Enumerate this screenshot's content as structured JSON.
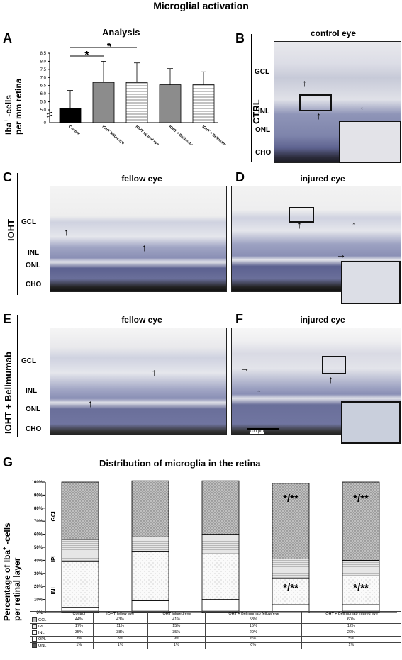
{
  "figure_title": "Microglial activation",
  "panels": {
    "A": {
      "letter": "A",
      "title": "Analysis",
      "ylabel_main": "Iba",
      "ylabel_sup": "+",
      "ylabel_rest": " -cells",
      "ylabel_line2": "per mm retina",
      "sig1": "*",
      "sig2": "*"
    },
    "B": {
      "letter": "B",
      "title": "control eye",
      "row_label": "CTRL",
      "layers": [
        "GCL",
        "INL",
        "ONL",
        "CHO"
      ]
    },
    "C": {
      "letter": "C",
      "title": "fellow eye",
      "row_label": "IOHT",
      "layers": [
        "GCL",
        "INL",
        "ONL",
        "CHO"
      ]
    },
    "D": {
      "letter": "D",
      "title": "injured eye"
    },
    "E": {
      "letter": "E",
      "title": "fellow eye",
      "row_label": "IOHT + Belimumab",
      "layers": [
        "GCL",
        "INL",
        "ONL",
        "CHO"
      ]
    },
    "F": {
      "letter": "F",
      "title": "injured eye",
      "scale_bar": "100 µm"
    },
    "G": {
      "letter": "G",
      "title": "Distribution of microglia in the retina",
      "ylabel_main": "Percentage of Iba",
      "ylabel_sup": "+",
      "ylabel_rest": " -cells",
      "ylabel_line2": "per retinal layer",
      "bar_layer_labels": [
        "GCL",
        "IPL",
        "INL"
      ],
      "sig_text": "*/**"
    }
  },
  "chart_data": [
    {
      "type": "bar",
      "title": "Analysis",
      "categories": [
        "Control",
        "IOHT fellow eye",
        "IOHT injured eye",
        "IOHT + Belimumab fellow eye",
        "IOHT + Belimumab injured eye"
      ],
      "values": [
        5.1,
        6.7,
        6.7,
        6.55,
        6.55
      ],
      "errors": [
        1.1,
        1.3,
        1.2,
        1.0,
        0.8
      ],
      "ylabel": "Iba+ -cells per mm retina",
      "ylim": [
        0,
        8.5
      ],
      "y_axis_break": [
        0,
        5
      ],
      "yticks": [
        "8.5",
        "8.0",
        "7.5",
        "7.0",
        "6.5",
        "6.0",
        "5.5",
        "5.0"
      ],
      "y_zero_label": "0",
      "fills": [
        "#000000",
        "#8c8c8c",
        "hatch",
        "#8c8c8c",
        "hatch"
      ]
    },
    {
      "type": "bar",
      "stacked": true,
      "title": "Distribution of microglia in the retina",
      "categories": [
        "Control",
        "IOHT fellow eye",
        "IOHT injured eye",
        "IOHT + Belimumab fellow eye",
        "IOHT + Belimumab injured eye"
      ],
      "ylabel": "Percentage of Iba+ -cells per retinal layer",
      "yticks": [
        "100%",
        "90%",
        "80%",
        "70%",
        "60%",
        "50%",
        "40%",
        "30%",
        "20%",
        "10%",
        "0%"
      ],
      "series": [
        {
          "name": "GCL",
          "values": [
            "44%",
            "43%",
            "41%",
            "58%",
            "60%"
          ]
        },
        {
          "name": "IPL",
          "values": [
            "17%",
            "11%",
            "15%",
            "15%",
            "12%"
          ]
        },
        {
          "name": "INL",
          "values": [
            "35%",
            "38%",
            "35%",
            "20%",
            "22%"
          ]
        },
        {
          "name": "OPL",
          "values": [
            "3%",
            "8%",
            "9%",
            "6%",
            "5%"
          ]
        },
        {
          "name": "ONL",
          "values": [
            "1%",
            "1%",
            "1%",
            "0%",
            "1%"
          ]
        }
      ]
    }
  ]
}
